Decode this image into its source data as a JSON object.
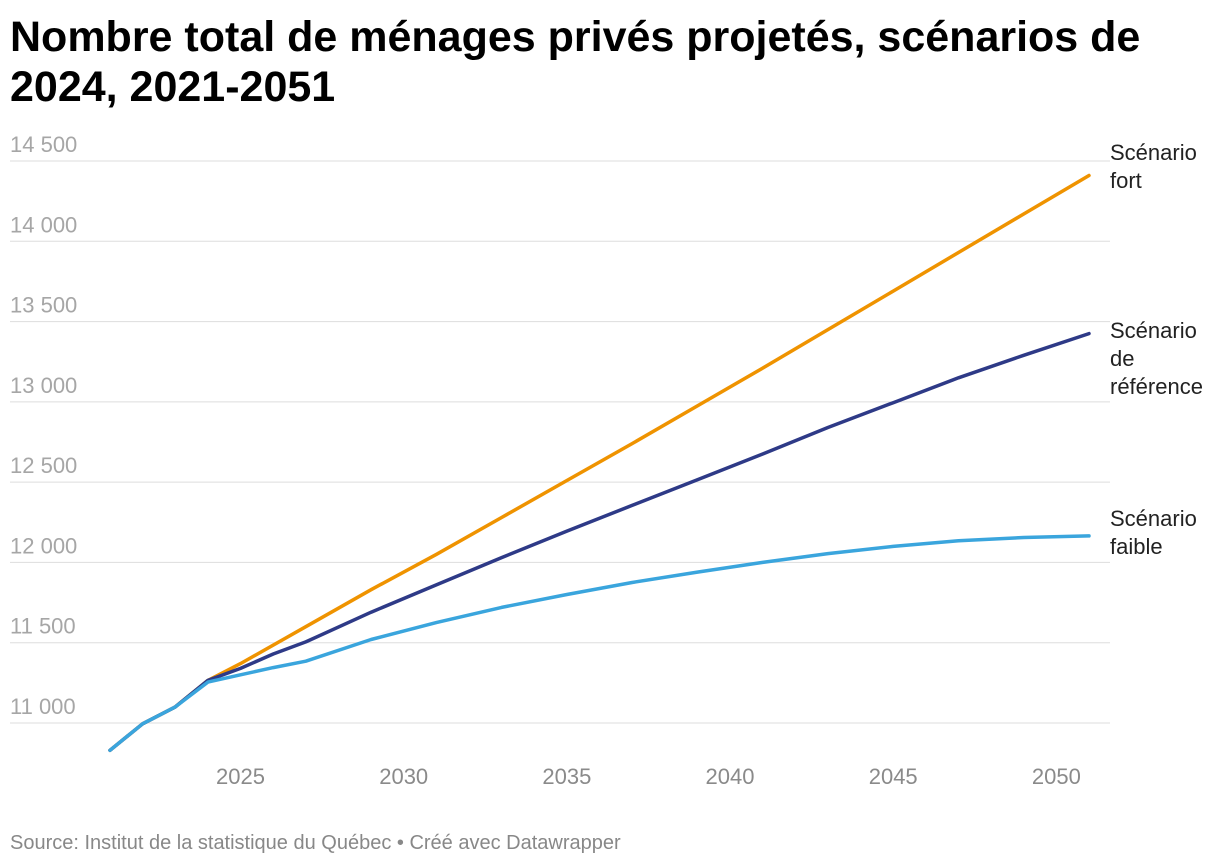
{
  "title": "Nombre total de ménages privés projetés, scénarios de 2024, 2021-2051",
  "source": "Source: Institut de la statistique du Québec • Créé avec Datawrapper",
  "chart_data": {
    "type": "line",
    "title": "Nombre total de ménages privés projetés, scénarios de 2024, 2021-2051",
    "xlabel": "",
    "ylabel": "",
    "xlim": [
      2021,
      2051
    ],
    "ylim": [
      10800,
      14600
    ],
    "yticks": [
      11000,
      11500,
      12000,
      12500,
      13000,
      13500,
      14000,
      14500
    ],
    "ytick_labels": [
      "11 000",
      "11 500",
      "12 000",
      "12 500",
      "13 000",
      "13 500",
      "14 000",
      "14 500"
    ],
    "xticks": [
      2025,
      2030,
      2035,
      2040,
      2045,
      2050
    ],
    "xtick_labels": [
      "2025",
      "2030",
      "2035",
      "2040",
      "2045",
      "2050"
    ],
    "grid": true,
    "series": [
      {
        "name": "Scénario fort",
        "label_lines": [
          "Scénario",
          "fort"
        ],
        "color": "#ef9300",
        "x": [
          2021,
          2022,
          2023,
          2024,
          2025,
          2027,
          2029,
          2031,
          2033,
          2035,
          2037,
          2039,
          2041,
          2043,
          2045,
          2047,
          2049,
          2051
        ],
        "y": [
          10830,
          10995,
          11100,
          11265,
          11370,
          11600,
          11830,
          12050,
          12280,
          12510,
          12740,
          12975,
          13210,
          13450,
          13690,
          13930,
          14170,
          14410
        ]
      },
      {
        "name": "Scénario de référence",
        "label_lines": [
          "Scénario",
          "de",
          "référence"
        ],
        "color": "#2e3a87",
        "x": [
          2021,
          2022,
          2023,
          2024,
          2025,
          2026,
          2027,
          2029,
          2031,
          2033,
          2035,
          2037,
          2039,
          2041,
          2043,
          2045,
          2047,
          2049,
          2051
        ],
        "y": [
          10830,
          10995,
          11100,
          11265,
          11340,
          11430,
          11505,
          11690,
          11860,
          12030,
          12195,
          12355,
          12515,
          12675,
          12840,
          12995,
          13150,
          13290,
          13425
        ]
      },
      {
        "name": "Scénario faible",
        "label_lines": [
          "Scénario",
          "faible"
        ],
        "color": "#3aa5dd",
        "x": [
          2021,
          2022,
          2023,
          2024,
          2025,
          2026,
          2027,
          2029,
          2031,
          2033,
          2035,
          2037,
          2039,
          2041,
          2043,
          2045,
          2047,
          2049,
          2051
        ],
        "y": [
          10830,
          10995,
          11100,
          11255,
          11300,
          11345,
          11385,
          11520,
          11625,
          11720,
          11800,
          11875,
          11940,
          12000,
          12055,
          12100,
          12135,
          12155,
          12165
        ]
      }
    ]
  }
}
